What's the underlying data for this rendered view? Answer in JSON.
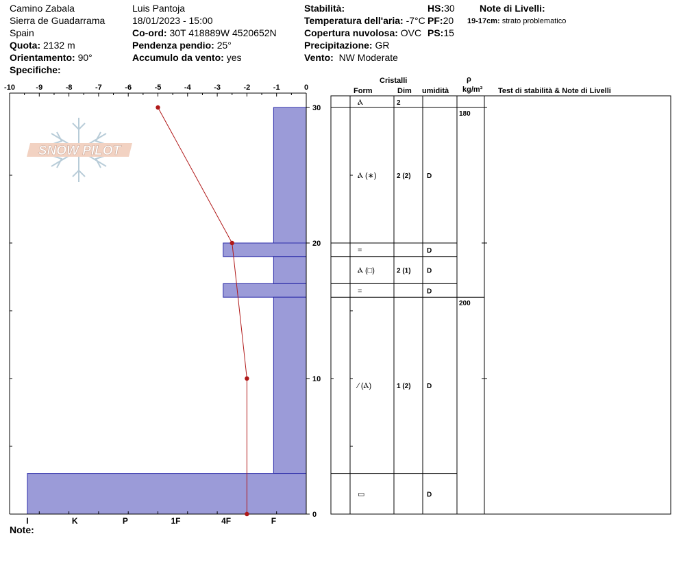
{
  "header": {
    "location": "Camino Zabala",
    "region": "Sierra de Guadarrama",
    "country": "Spain",
    "elevation_label": "Quota:",
    "elevation_value": "2132 m",
    "aspect_label": "Orientamento:",
    "aspect_value": "90°",
    "specifics_label": "Specifiche:",
    "observer": "Luis Pantoja",
    "datetime": "18/01/2023 - 15:00",
    "coord_label": "Co-ord:",
    "coord_value": "30T 418889W 4520652N",
    "slope_label": "Pendenza pendio:",
    "slope_value": "25°",
    "wind_loading_label": "Accumulo da vento:",
    "wind_loading_value": "yes",
    "stability_label": "Stabilità:",
    "air_temp_label": "Temperatura dell'aria:",
    "air_temp_value": "-7°C",
    "cloud_label": "Copertura nuvolosa:",
    "cloud_value": "OVC",
    "precip_label": "Precipitazione:",
    "precip_value": "GR",
    "wind_label": "Vento:",
    "wind_value": "NW Moderate",
    "hs_label": "HS:",
    "hs_value": "30",
    "pf_label": "PF:",
    "pf_value": "20",
    "ps_label": "PS:",
    "ps_value": "15",
    "layer_notes_label": "Note di Livelli:",
    "layer_note_range": "19-17cm:",
    "layer_note_text": "strato problematico"
  },
  "watermark": "SNOW PILOT",
  "note_label": "Note:",
  "columns": {
    "crystals": "Cristalli",
    "form": "Form",
    "size": "Dim",
    "moisture": "umidità",
    "density_symbol": "ρ",
    "density_unit": "kg/m³",
    "tests": "Test di stabilità & Note di Livelli"
  },
  "chart_data": {
    "type": "snow-profile",
    "temperature_axis": {
      "min": -10,
      "max": 0,
      "ticks": [
        "-10",
        "-9",
        "-8",
        "-7",
        "-6",
        "-5",
        "-4",
        "-3",
        "-2",
        "-1",
        "0"
      ]
    },
    "height_axis": {
      "min": 0,
      "max": 30,
      "ticks": [
        "0",
        "10",
        "20",
        "30"
      ]
    },
    "hardness_axis": {
      "labels": [
        "I",
        "K",
        "P",
        "1F",
        "4F",
        "F"
      ]
    },
    "temperature_profile": [
      {
        "height": 30,
        "temp": -5.0
      },
      {
        "height": 20,
        "temp": -2.5
      },
      {
        "height": 10,
        "temp": -2.0
      },
      {
        "height": 0,
        "temp": -2.0
      }
    ],
    "hardness_layers": [
      {
        "top": 30,
        "bottom": 20,
        "temp_extent": -1.1
      },
      {
        "top": 20,
        "bottom": 19,
        "temp_extent": -2.8
      },
      {
        "top": 19,
        "bottom": 17,
        "temp_extent": -1.1
      },
      {
        "top": 17,
        "bottom": 16,
        "temp_extent": -2.8
      },
      {
        "top": 16,
        "bottom": 3,
        "temp_extent": -1.1
      },
      {
        "top": 3,
        "bottom": 0,
        "temp_extent": -9.4
      }
    ],
    "layers": [
      {
        "top": 30,
        "bottom": 30,
        "form": "Ⲁ",
        "size": "2",
        "moisture": ""
      },
      {
        "top": 30,
        "bottom": 20,
        "form": "Ⲁ (∗)",
        "size": "2 (2)",
        "moisture": "D"
      },
      {
        "top": 20,
        "bottom": 19,
        "form": "=",
        "size": "",
        "moisture": "D"
      },
      {
        "top": 19,
        "bottom": 17,
        "form": "Ⲁ (□)",
        "size": "2 (1)",
        "moisture": "D"
      },
      {
        "top": 17,
        "bottom": 16,
        "form": "=",
        "size": "",
        "moisture": "D"
      },
      {
        "top": 16,
        "bottom": 3,
        "form": "⁄ (Ⲁ)",
        "size": "1 (2)",
        "moisture": "D"
      },
      {
        "top": 3,
        "bottom": 0,
        "form": "▭",
        "size": "",
        "moisture": "D"
      }
    ],
    "densities": [
      {
        "top": 30,
        "value": "180"
      },
      {
        "top": 16,
        "value": "200"
      }
    ],
    "colors": {
      "hardness_fill": "#9b9bd8",
      "hardness_stroke": "#2a2aa8",
      "temperature": "#b01818"
    }
  }
}
